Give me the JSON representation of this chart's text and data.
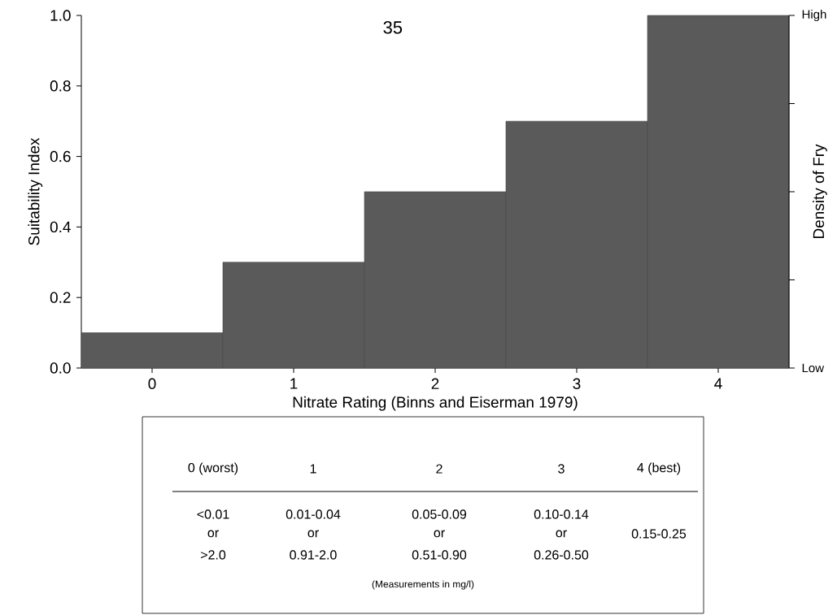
{
  "chart_data": {
    "type": "bar",
    "title": "35",
    "categories": [
      "0",
      "1",
      "2",
      "3",
      "4"
    ],
    "values": [
      0.1,
      0.3,
      0.5,
      0.7,
      1.0
    ],
    "color": "#5a5a5a",
    "xlabel": "Nitrate Rating (Binns and Eiserman 1979)",
    "ylabel": "Suitability Index",
    "y2label": "Density of Fry",
    "ylim": [
      0,
      1
    ],
    "yticks": [
      {
        "value": 0,
        "label": "0.0"
      },
      {
        "value": 0.2,
        "label": "0.2"
      },
      {
        "value": 0.4,
        "label": "0.4"
      },
      {
        "value": 0.6,
        "label": "0.6"
      },
      {
        "value": 0.8,
        "label": "0.8"
      },
      {
        "value": 1,
        "label": "1.0"
      }
    ],
    "annotations": [
      "0 (worst)",
      "1",
      "2",
      "3",
      "4 (best)",
      "<0.01",
      "or",
      ">2.0",
      "0.01-0.04",
      "or",
      "0.91-2.0",
      "0.05-0.09",
      "or",
      "0.51-0.90",
      "0.10-0.14",
      "or",
      "0.26-0.50",
      "0.15-0.25",
      "(Measurements in mg/l)",
      "Low",
      "High"
    ]
  }
}
